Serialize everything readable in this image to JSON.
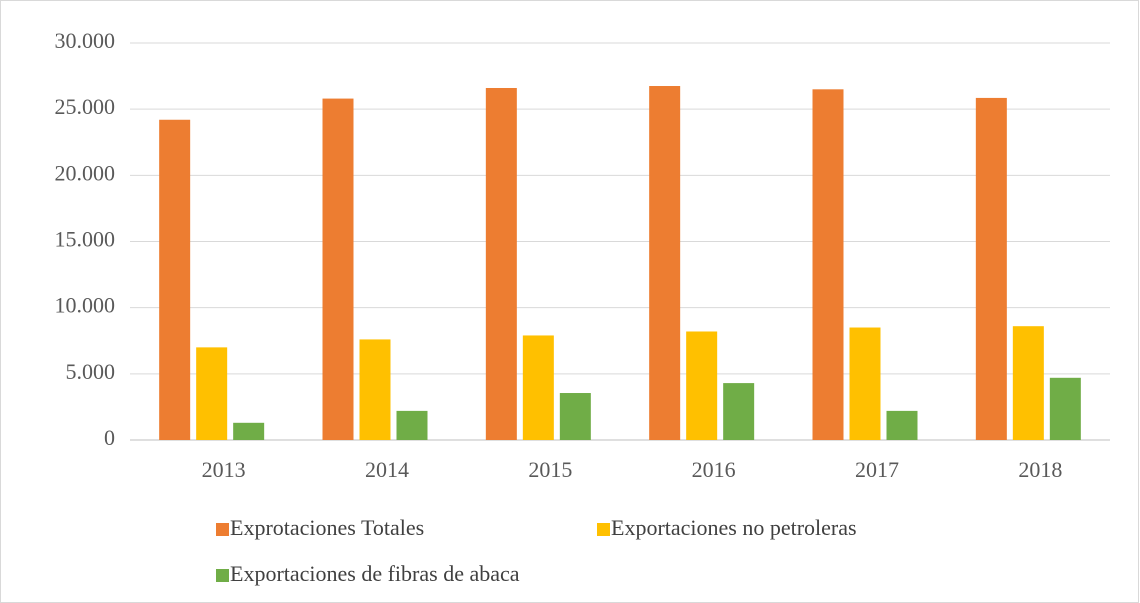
{
  "chart_data": {
    "type": "bar",
    "categories": [
      "2013",
      "2014",
      "2015",
      "2016",
      "2017",
      "2018"
    ],
    "series": [
      {
        "name": "Exprotaciones Totales",
        "color": "#ed7d31",
        "values": [
          24200,
          25800,
          26600,
          26750,
          26500,
          25850
        ]
      },
      {
        "name": "Exportaciones no petroleras",
        "color": "#ffc000",
        "values": [
          7000,
          7600,
          7900,
          8200,
          8500,
          8600
        ]
      },
      {
        "name": "Exportaciones de fibras de abaca",
        "color": "#70ad47",
        "values": [
          1300,
          2200,
          3550,
          4300,
          2200,
          4700
        ]
      }
    ],
    "ylim": [
      0,
      30000
    ],
    "yticks": [
      0,
      {
        "value": 5000,
        "label": "5.000"
      },
      {
        "value": 10000,
        "label": "10.000"
      },
      {
        "value": 15000,
        "label": "15.000"
      },
      {
        "value": 20000,
        "label": "20.000"
      },
      {
        "value": 25000,
        "label": "25.000"
      },
      {
        "value": 30000,
        "label": "30.000"
      }
    ],
    "grid": true,
    "legend": "bottom"
  }
}
